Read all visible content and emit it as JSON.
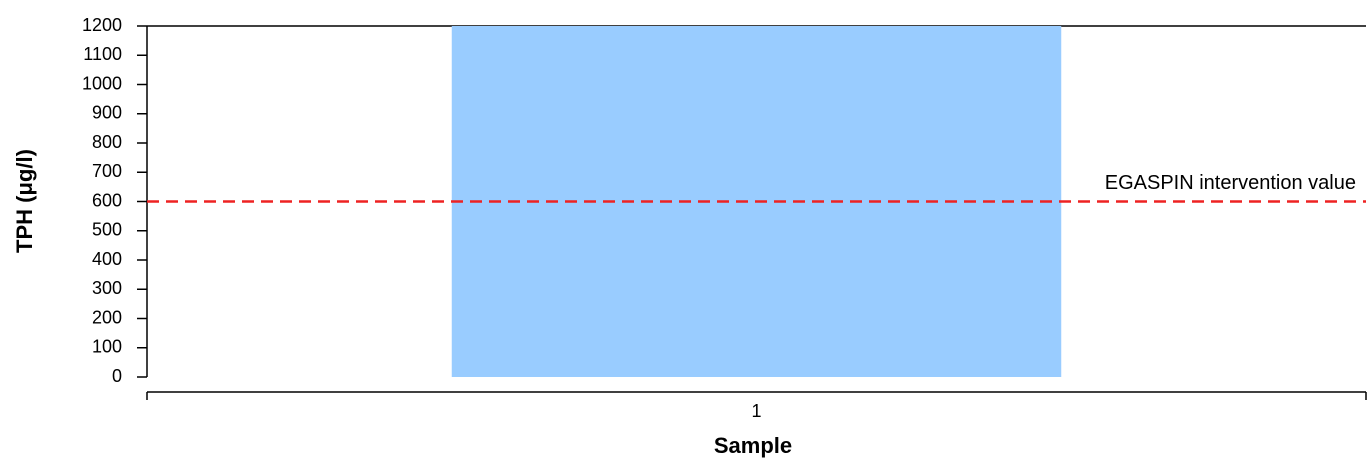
{
  "chart_data": {
    "type": "bar",
    "xlabel": "Sample",
    "ylabel": "TPH (μg/l)",
    "categories": [
      "1"
    ],
    "values": [
      1200
    ],
    "color": "#99ccff",
    "ylim": [
      0,
      1200
    ],
    "yticks": [
      0,
      100,
      200,
      300,
      400,
      500,
      600,
      700,
      800,
      900,
      1000,
      1100,
      1200
    ],
    "reference_lines": [
      {
        "value": 600,
        "label": "EGASPIN intervention value",
        "color": "#ee2222"
      }
    ]
  }
}
